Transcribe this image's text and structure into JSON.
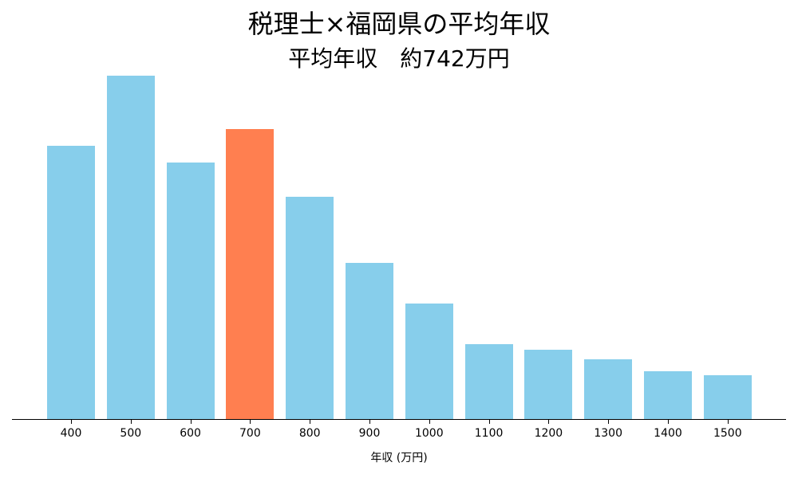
{
  "chart_data": {
    "type": "bar",
    "title": "税理士×福岡県の平均年収",
    "subtitle": "平均年収　約742万円",
    "xlabel": "年収 (万円)",
    "ylabel": "",
    "categories": [
      "400",
      "500",
      "600",
      "700",
      "800",
      "900",
      "1000",
      "1100",
      "1200",
      "1300",
      "1400",
      "1500"
    ],
    "values": [
      344,
      432,
      323,
      365,
      280,
      197,
      146,
      95,
      88,
      76,
      61,
      56
    ],
    "value_unit": "relative frequency (pixel height; y-axis not shown)",
    "highlight_index": 3,
    "colors": {
      "default": "#87CEEB",
      "highlight": "#FF7F50"
    },
    "ylim": [
      0,
      467
    ],
    "grid": false,
    "legend": null
  }
}
